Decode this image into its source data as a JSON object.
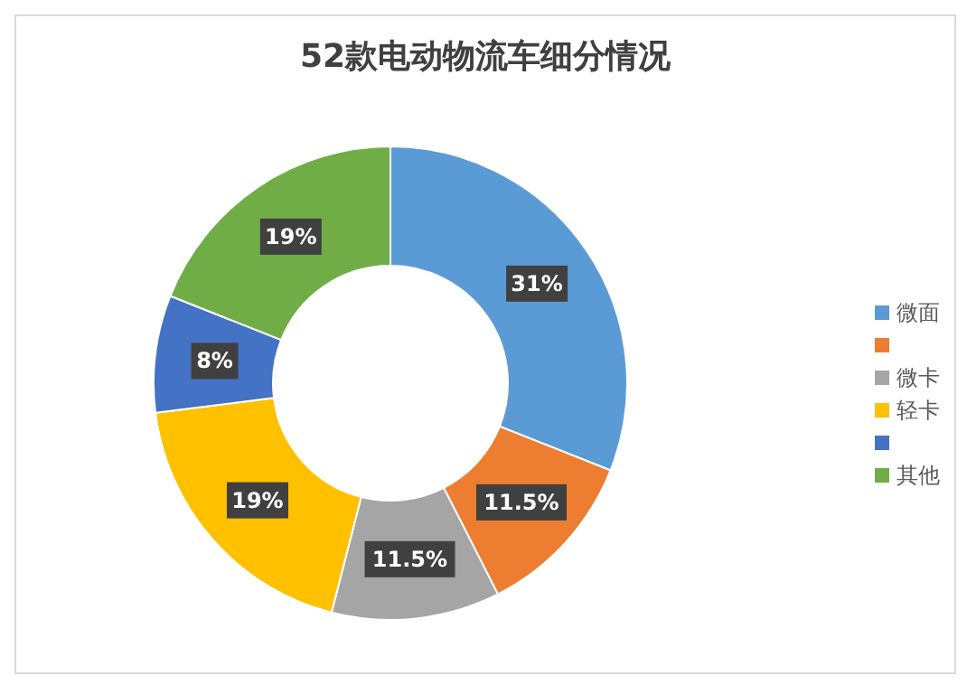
{
  "chart_data": {
    "type": "donut",
    "title": "52款电动物流车细分情况",
    "categories": [
      "微面",
      null,
      "微卡",
      "轻卡",
      null,
      "其他"
    ],
    "values": [
      31,
      11.5,
      11.5,
      19,
      8,
      19
    ],
    "colors": [
      "#5b9bd5",
      "#ed7d31",
      "#a5a5a5",
      "#ffc000",
      "#4472c4",
      "#70ad47"
    ],
    "value_labels": [
      "31%",
      "11.5%",
      "11.5%",
      "19%",
      "8%",
      "19%"
    ],
    "legend": "right"
  }
}
